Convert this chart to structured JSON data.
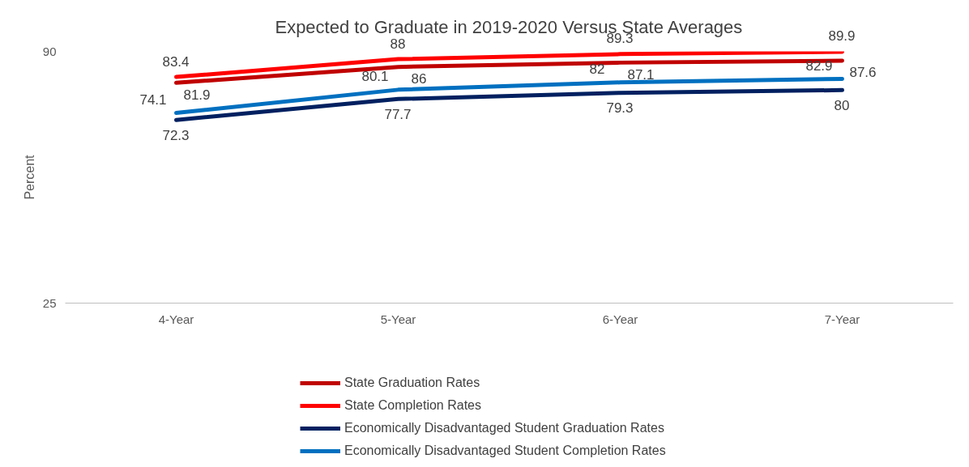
{
  "chart_data": {
    "type": "line",
    "title": "Expected to Graduate in 2019-2020 Versus State Averages",
    "ylabel": "Percent",
    "categories": [
      "4-Year",
      "5-Year",
      "6-Year",
      "7-Year"
    ],
    "series": [
      {
        "name": "State Graduation Rates",
        "color": "#c00000",
        "values": [
          81.9,
          86,
          87.1,
          87.6
        ]
      },
      {
        "name": "State Completion Rates",
        "color": "#ff0000",
        "values": [
          83.4,
          88,
          89.3,
          89.9
        ]
      },
      {
        "name": "Economically Disadvantaged Student Graduation Rates",
        "color": "#002060",
        "values": [
          72.3,
          77.7,
          79.3,
          80
        ]
      },
      {
        "name": "Economically Disadvantaged Student Completion Rates",
        "color": "#0070c0",
        "values": [
          74.1,
          80.1,
          82,
          82.9
        ]
      }
    ],
    "ylim": [
      25,
      90
    ],
    "yticks": [
      25,
      90
    ],
    "grid": false,
    "legend": "bottom",
    "data_labels": true,
    "marker": "none",
    "line_style": "solid"
  }
}
